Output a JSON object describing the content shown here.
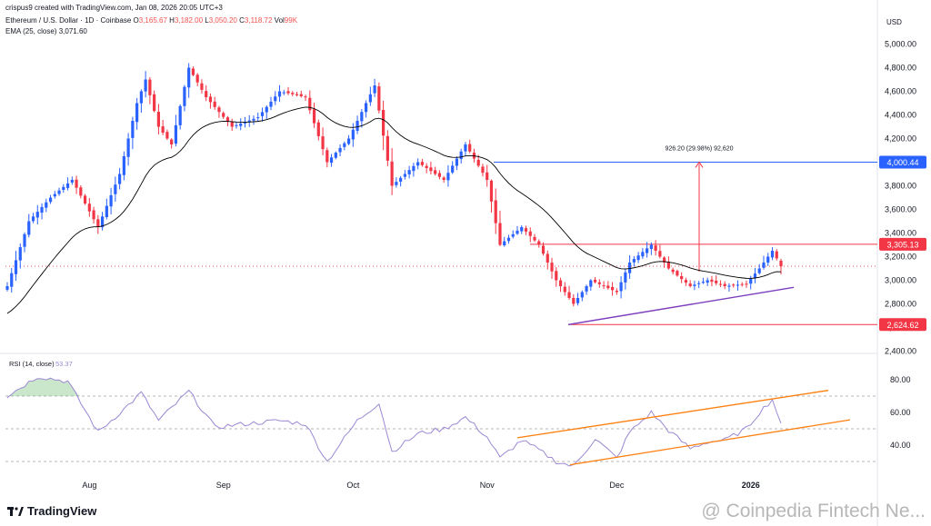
{
  "header": {
    "attribution": "crispus9 created with TradingView.com, Jan 08, 2026 20:05 UTC+3",
    "symbol": "Ethereum / U.S. Dollar · 1D · Coinbase",
    "o_label": "O",
    "o_value": "3,165.67",
    "h_label": "H",
    "h_value": "3,182.00",
    "l_label": "L",
    "l_value": "3,050.20",
    "c_label": "C",
    "c_value": "3,118.72",
    "vol_label": "Vol",
    "vol_value": "99K",
    "ema_label": "EMA (25, close)",
    "ema_value": "3,071.60"
  },
  "price_axis": {
    "currency": "USD",
    "ticks": [
      "5,000.00",
      "4,800.00",
      "4,600.00",
      "4,400.00",
      "4,200.00",
      "4,000.00",
      "3,800.00",
      "3,600.00",
      "3,400.00",
      "3,200.00",
      "3,000.00",
      "2,800.00",
      "2,600.00",
      "2,400.00"
    ],
    "badges": [
      {
        "text": "4,000.44",
        "color": "#2962ff"
      },
      {
        "text": "3,305.13",
        "color": "#f23645"
      },
      {
        "text": "2,624.62",
        "color": "#f23645"
      }
    ]
  },
  "measure_label": "926.20 (29.98%) 92,620",
  "rsi": {
    "label": "RSI (14, close)",
    "value": "53.37",
    "ticks": [
      "80.00",
      "60.00",
      "40.00"
    ]
  },
  "time_axis": [
    "Aug",
    "Sep",
    "Oct",
    "Nov",
    "Dec",
    "2026"
  ],
  "branding": {
    "logo": "TradingView",
    "watermark": "@ Coinpedia Fintech Ne..."
  },
  "colors": {
    "up": "#2962ff",
    "down": "#f23645",
    "ema": "#000000",
    "trend": "#7e3fbf",
    "channel": "#ff7f0e",
    "rsi": "#9c88d4"
  },
  "chart_data": [
    {
      "type": "candlestick",
      "title": "Ethereum / U.S. Dollar · 1D · Coinbase",
      "ylabel": "USD",
      "ylim": [
        2400,
        5000
      ],
      "anchors": [
        [
          "2025-07-13",
          2950
        ],
        [
          "2025-07-18",
          3500
        ],
        [
          "2025-07-23",
          3700
        ],
        [
          "2025-07-28",
          3850
        ],
        [
          "2025-08-03",
          3450
        ],
        [
          "2025-08-08",
          3900
        ],
        [
          "2025-08-12",
          4500
        ],
        [
          "2025-08-14",
          4700
        ],
        [
          "2025-08-17",
          4300
        ],
        [
          "2025-08-20",
          4150
        ],
        [
          "2025-08-24",
          4800
        ],
        [
          "2025-08-28",
          4550
        ],
        [
          "2025-09-03",
          4300
        ],
        [
          "2025-09-09",
          4380
        ],
        [
          "2025-09-14",
          4600
        ],
        [
          "2025-09-20",
          4550
        ],
        [
          "2025-09-25",
          4000
        ],
        [
          "2025-09-30",
          4200
        ],
        [
          "2025-10-06",
          4650
        ],
        [
          "2025-10-10",
          3800
        ],
        [
          "2025-10-16",
          4000
        ],
        [
          "2025-10-22",
          3850
        ],
        [
          "2025-10-27",
          4150
        ],
        [
          "2025-11-01",
          3850
        ],
        [
          "2025-11-04",
          3300
        ],
        [
          "2025-11-09",
          3450
        ],
        [
          "2025-11-13",
          3300
        ],
        [
          "2025-11-17",
          3000
        ],
        [
          "2025-11-21",
          2800
        ],
        [
          "2025-11-25",
          3000
        ],
        [
          "2025-12-01",
          2900
        ],
        [
          "2025-12-04",
          3150
        ],
        [
          "2025-12-09",
          3300
        ],
        [
          "2025-12-13",
          3100
        ],
        [
          "2025-12-18",
          2950
        ],
        [
          "2025-12-22",
          3000
        ],
        [
          "2025-12-26",
          2950
        ],
        [
          "2025-12-31",
          2970
        ],
        [
          "2026-01-03",
          3100
        ],
        [
          "2026-01-06",
          3250
        ],
        [
          "2026-01-08",
          3120
        ]
      ],
      "last": {
        "o": 3165.67,
        "h": 3182.0,
        "l": 3050.2,
        "c": 3118.72
      },
      "ema_25_last": 3071.6,
      "levels": [
        4000.44,
        3305.13,
        2624.62
      ],
      "measure": {
        "from": 3074.24,
        "to": 4000.44,
        "change": 926.2,
        "percent": 29.98
      },
      "x_ticks": [
        "Aug",
        "Sep",
        "Oct",
        "Nov",
        "Dec",
        "2026"
      ]
    },
    {
      "type": "line",
      "title": "RSI (14, close)",
      "ylim": [
        25,
        90
      ],
      "y_ticks": [
        80,
        60,
        40
      ],
      "levels": [
        70,
        50,
        30
      ],
      "anchors": [
        [
          "2025-07-13",
          70
        ],
        [
          "2025-07-20",
          82
        ],
        [
          "2025-07-27",
          79
        ],
        [
          "2025-08-03",
          48
        ],
        [
          "2025-08-09",
          62
        ],
        [
          "2025-08-13",
          72
        ],
        [
          "2025-08-17",
          55
        ],
        [
          "2025-08-24",
          73
        ],
        [
          "2025-08-30",
          51
        ],
        [
          "2025-09-06",
          53
        ],
        [
          "2025-09-14",
          55
        ],
        [
          "2025-09-20",
          53
        ],
        [
          "2025-09-25",
          30
        ],
        [
          "2025-10-02",
          55
        ],
        [
          "2025-10-07",
          66
        ],
        [
          "2025-10-10",
          36
        ],
        [
          "2025-10-16",
          47
        ],
        [
          "2025-10-22",
          50
        ],
        [
          "2025-10-27",
          57
        ],
        [
          "2025-11-01",
          45
        ],
        [
          "2025-11-04",
          32
        ],
        [
          "2025-11-09",
          43
        ],
        [
          "2025-11-13",
          37
        ],
        [
          "2025-11-17",
          30
        ],
        [
          "2025-11-21",
          27
        ],
        [
          "2025-11-26",
          44
        ],
        [
          "2025-12-01",
          32
        ],
        [
          "2025-12-04",
          48
        ],
        [
          "2025-12-09",
          60
        ],
        [
          "2025-12-13",
          49
        ],
        [
          "2025-12-18",
          38
        ],
        [
          "2025-12-22",
          42
        ],
        [
          "2025-12-26",
          43
        ],
        [
          "2025-12-31",
          50
        ],
        [
          "2026-01-03",
          60
        ],
        [
          "2026-01-06",
          68
        ],
        [
          "2026-01-08",
          53.37
        ]
      ],
      "last": 53.37
    }
  ]
}
